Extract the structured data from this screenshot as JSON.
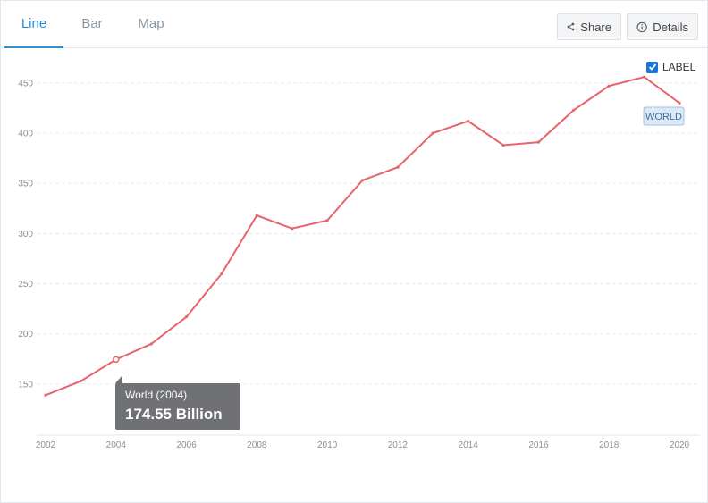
{
  "tabs": [
    {
      "label": "Line",
      "active": true
    },
    {
      "label": "Bar",
      "active": false
    },
    {
      "label": "Map",
      "active": false
    }
  ],
  "toolbar": {
    "share_label": "Share",
    "details_label": "Details"
  },
  "label_toggle": {
    "label": "LABEL",
    "checked": true
  },
  "colors": {
    "series": "#e8646b",
    "accent": "#2c8fd6",
    "checkbox": "#1a73d9"
  },
  "tooltip": {
    "title": "World (2004)",
    "value": "174.55 Billion",
    "x": 2004,
    "y": 174.55
  },
  "chart_data": {
    "type": "line",
    "x": [
      2002,
      2003,
      2004,
      2005,
      2006,
      2007,
      2008,
      2009,
      2010,
      2011,
      2012,
      2013,
      2014,
      2015,
      2016,
      2017,
      2018,
      2019,
      2020
    ],
    "series": [
      {
        "name": "WORLD",
        "values": [
          139,
          153,
          174.55,
          190,
          217,
          260,
          318,
          305,
          313,
          353,
          366,
          400,
          412,
          388,
          391,
          423,
          447,
          456,
          430
        ]
      }
    ],
    "xticks": [
      "2002",
      "2004",
      "2006",
      "2008",
      "2010",
      "2012",
      "2014",
      "2016",
      "2018",
      "2020"
    ],
    "yticks": [
      "150",
      "200",
      "250",
      "300",
      "350",
      "400",
      "450"
    ],
    "xlim": [
      2002,
      2020
    ],
    "ylim": [
      117,
      473
    ],
    "grid": "horizontal-dashed",
    "legend": "none"
  }
}
